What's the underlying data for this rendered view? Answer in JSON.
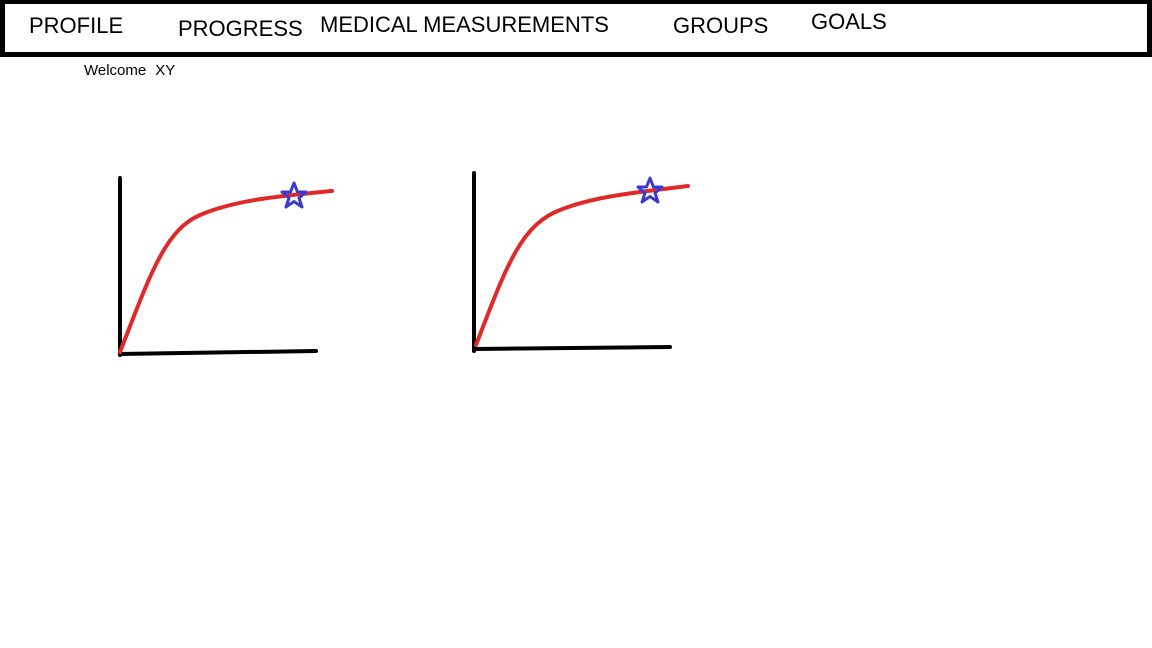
{
  "nav": {
    "items": [
      {
        "label": "PROFILE"
      },
      {
        "label": "PROGRESS"
      },
      {
        "label": "MEDICAL MEASUREMENTS"
      },
      {
        "label": "GROUPS"
      },
      {
        "label": "GOALS"
      }
    ]
  },
  "welcome": {
    "greeting": "Welcome",
    "user_name": "XY"
  },
  "colors": {
    "axis": "#000000",
    "curve": "#e02a2a",
    "marker": "#3a3ad0",
    "border": "#000000"
  },
  "charts": [
    {
      "curve_shape": "saturating-growth",
      "marker": "star-icon"
    },
    {
      "curve_shape": "saturating-growth",
      "marker": "star-icon"
    }
  ]
}
